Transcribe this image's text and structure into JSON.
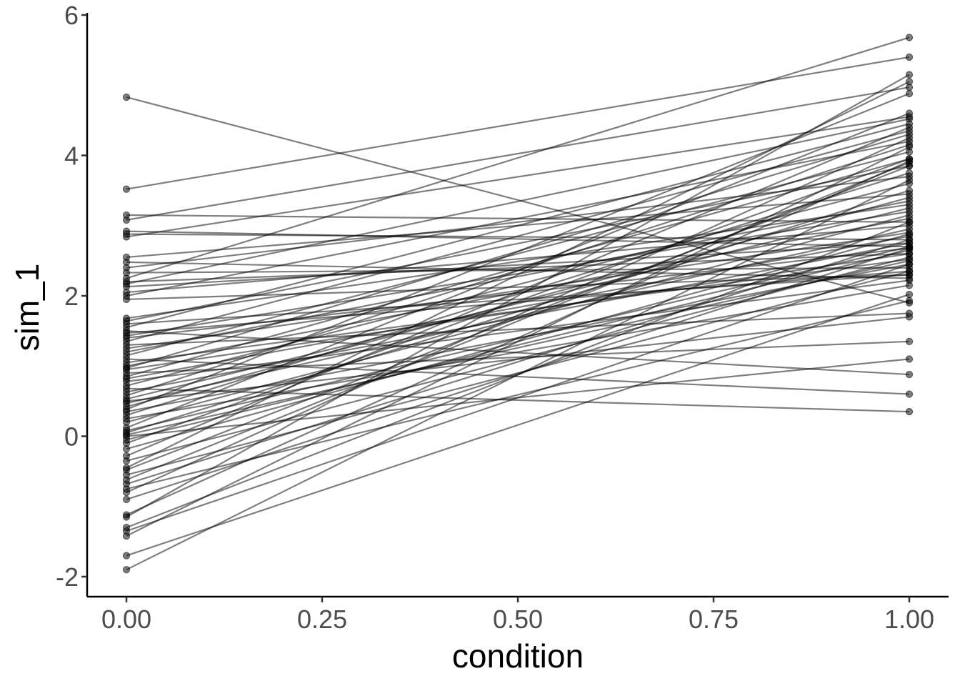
{
  "chart_data": {
    "type": "line",
    "title": "",
    "xlabel": "condition",
    "ylabel": "sim_1",
    "xlim": [
      -0.05,
      1.05
    ],
    "ylim": [
      -2.3,
      6.0
    ],
    "x_ticks": [
      {
        "value": 0,
        "label": "0.00"
      },
      {
        "value": 0.25,
        "label": "0.25"
      },
      {
        "value": 0.5,
        "label": "0.50"
      },
      {
        "value": 0.75,
        "label": "0.75"
      },
      {
        "value": 1,
        "label": "1.00"
      }
    ],
    "y_ticks": [
      {
        "value": -2,
        "label": "-2"
      },
      {
        "value": 0,
        "label": "0"
      },
      {
        "value": 2,
        "label": "2"
      },
      {
        "value": 4,
        "label": "4"
      },
      {
        "value": 6,
        "label": "6"
      }
    ],
    "grid": false,
    "legend": "none",
    "line_color": "#000000",
    "line_opacity": 0.5,
    "point_color": "#000000",
    "point_opacity": 0.5,
    "x": [
      0,
      1
    ],
    "pairs": [
      [
        4.83,
        1.9
      ],
      [
        3.52,
        5.4
      ],
      [
        3.15,
        3.05
      ],
      [
        3.08,
        4.97
      ],
      [
        2.92,
        2.7
      ],
      [
        2.88,
        2.8
      ],
      [
        2.84,
        4.55
      ],
      [
        2.55,
        3.45
      ],
      [
        2.48,
        2.25
      ],
      [
        2.4,
        3.7
      ],
      [
        2.33,
        2.4
      ],
      [
        2.25,
        5.68
      ],
      [
        2.2,
        2.6
      ],
      [
        2.17,
        4.52
      ],
      [
        2.13,
        2.75
      ],
      [
        2.05,
        3.0
      ],
      [
        2.0,
        4.2
      ],
      [
        1.95,
        2.3
      ],
      [
        1.68,
        3.3
      ],
      [
        1.64,
        3.85
      ],
      [
        1.6,
        2.3
      ],
      [
        1.55,
        4.45
      ],
      [
        1.5,
        0.88
      ],
      [
        1.47,
        2.35
      ],
      [
        1.43,
        3.2
      ],
      [
        1.4,
        2.68
      ],
      [
        1.35,
        4.35
      ],
      [
        1.3,
        1.75
      ],
      [
        1.25,
        2.9
      ],
      [
        1.2,
        3.35
      ],
      [
        1.15,
        4.05
      ],
      [
        1.1,
        0.6
      ],
      [
        1.05,
        2.52
      ],
      [
        1.0,
        3.1
      ],
      [
        0.97,
        4.3
      ],
      [
        0.95,
        2.6
      ],
      [
        0.9,
        1.35
      ],
      [
        0.85,
        3.95
      ],
      [
        0.82,
        2.85
      ],
      [
        0.78,
        2.22
      ],
      [
        0.72,
        3.6
      ],
      [
        0.68,
        0.35
      ],
      [
        0.63,
        2.75
      ],
      [
        0.58,
        4.15
      ],
      [
        0.53,
        3.25
      ],
      [
        0.5,
        1.7
      ],
      [
        0.47,
        2.95
      ],
      [
        0.42,
        3.4
      ],
      [
        0.38,
        4.88
      ],
      [
        0.35,
        2.45
      ],
      [
        0.3,
        3.75
      ],
      [
        0.25,
        2.15
      ],
      [
        0.2,
        3.15
      ],
      [
        0.12,
        4.6
      ],
      [
        0.08,
        2.7
      ],
      [
        0.05,
        3.5
      ],
      [
        0.02,
        2.5
      ],
      [
        0.0,
        1.1
      ],
      [
        -0.05,
        2.65
      ],
      [
        -0.1,
        3.95
      ],
      [
        -0.18,
        2.88
      ],
      [
        -0.28,
        4.4
      ],
      [
        -0.35,
        2.55
      ],
      [
        -0.45,
        5.05
      ],
      [
        -0.48,
        3.85
      ],
      [
        -0.55,
        2.35
      ],
      [
        -0.62,
        3.9
      ],
      [
        -0.68,
        2.8
      ],
      [
        -0.75,
        1.93
      ],
      [
        -0.8,
        4.25
      ],
      [
        -0.9,
        2.68
      ],
      [
        -1.12,
        3.92
      ],
      [
        -1.15,
        5.15
      ],
      [
        -1.3,
        3.05
      ],
      [
        -1.35,
        2.45
      ],
      [
        -1.42,
        4.12
      ],
      [
        -1.7,
        2.02
      ],
      [
        -1.9,
        3.65
      ]
    ]
  }
}
